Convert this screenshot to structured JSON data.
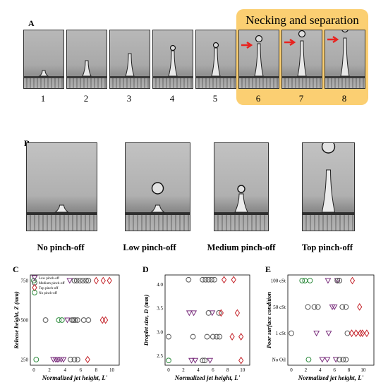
{
  "panel_a": {
    "letter": "A",
    "highlight_title": "Necking and separation",
    "frames": [
      "1",
      "2",
      "3",
      "4",
      "5",
      "6",
      "7",
      "8"
    ]
  },
  "panel_b": {
    "letter": "B",
    "labels": [
      "No pinch-off",
      "Low pinch-off",
      "Medium pinch-off",
      "Top pinch-off"
    ]
  },
  "colors": {
    "highlight": "#fbcf72",
    "arrow": "#e8231f",
    "low": "#7a2f7d",
    "medium": "#555555",
    "top": "#c4232a",
    "none": "#2e8b3e"
  },
  "chart_data": [
    {
      "letter": "C",
      "type": "scatter",
      "xlabel": "Normalized jet height, L'",
      "ylabel": "Release height, Z (mm)",
      "xlim": [
        0,
        10.5
      ],
      "yticks": [
        "250",
        "500",
        "750"
      ],
      "xticks": [
        "0",
        "2",
        "4",
        "6",
        "8",
        "10"
      ],
      "ycats": [
        250,
        500,
        750
      ],
      "legend": [
        "Low pinch-off",
        "Medium pinch-off",
        "Top pinch-off",
        "No pinch-off"
      ],
      "series": [
        {
          "name": "Low pinch-off",
          "marker": "tri-down",
          "color": "#7a2f7d",
          "points": [
            [
              2.5,
              250
            ],
            [
              2.8,
              250
            ],
            [
              3.0,
              250
            ],
            [
              3.2,
              250
            ],
            [
              3.5,
              250
            ],
            [
              3.8,
              250
            ],
            [
              4.6,
              750
            ],
            [
              4.3,
              500
            ]
          ]
        },
        {
          "name": "Medium pinch-off",
          "marker": "circle",
          "color": "#555555",
          "points": [
            [
              4.7,
              250
            ],
            [
              5.2,
              250
            ],
            [
              5.6,
              250
            ],
            [
              4.9,
              500
            ],
            [
              5.1,
              500
            ],
            [
              5.3,
              500
            ],
            [
              5.6,
              500
            ],
            [
              6.4,
              500
            ],
            [
              7.0,
              500
            ],
            [
              1.5,
              500
            ],
            [
              5.2,
              750
            ],
            [
              5.5,
              750
            ],
            [
              5.9,
              750
            ],
            [
              6.3,
              750
            ],
            [
              6.7,
              750
            ],
            [
              7.0,
              750
            ]
          ]
        },
        {
          "name": "Top pinch-off",
          "marker": "diamond",
          "color": "#c4232a",
          "points": [
            [
              6.9,
              250
            ],
            [
              8.8,
              500
            ],
            [
              9.2,
              500
            ],
            [
              8.0,
              750
            ],
            [
              8.9,
              750
            ],
            [
              9.7,
              750
            ]
          ]
        },
        {
          "name": "No pinch-off",
          "marker": "circle",
          "color": "#2e8b3e",
          "points": [
            [
              0.3,
              250
            ],
            [
              0.0,
              750
            ],
            [
              3.2,
              500
            ],
            [
              3.6,
              500
            ]
          ]
        }
      ]
    },
    {
      "letter": "D",
      "type": "scatter",
      "xlabel": "Normalized jet height, L'",
      "ylabel": "Droplet size, D (mm)",
      "xlim": [
        0,
        10.5
      ],
      "ylim": [
        2.3,
        4.2
      ],
      "yticks": [
        "2.5",
        "3.0",
        "3.5",
        "4.0"
      ],
      "xticks": [
        "0",
        "2",
        "4",
        "6",
        "8",
        "10"
      ],
      "series": [
        {
          "name": "Low pinch-off",
          "marker": "tri-down",
          "color": "#7a2f7d",
          "points": [
            [
              2.8,
              3.4
            ],
            [
              3.4,
              3.4
            ],
            [
              3.1,
              2.4
            ],
            [
              3.6,
              2.4
            ],
            [
              5.6,
              2.4
            ],
            [
              5.9,
              3.4
            ]
          ]
        },
        {
          "name": "Medium pinch-off",
          "marker": "circle",
          "color": "#555555",
          "points": [
            [
              2.7,
              4.1
            ],
            [
              4.6,
              4.1
            ],
            [
              5.0,
              4.1
            ],
            [
              5.4,
              4.1
            ],
            [
              5.8,
              4.1
            ],
            [
              6.2,
              4.1
            ],
            [
              5.4,
              3.4
            ],
            [
              6.8,
              3.4
            ],
            [
              3.3,
              2.9
            ],
            [
              5.2,
              2.9
            ],
            [
              6.0,
              2.9
            ],
            [
              6.5,
              2.9
            ],
            [
              6.9,
              2.9
            ],
            [
              0.0,
              2.9
            ],
            [
              4.6,
              2.4
            ],
            [
              4.9,
              2.4
            ]
          ]
        },
        {
          "name": "Top pinch-off",
          "marker": "diamond",
          "color": "#c4232a",
          "points": [
            [
              7.5,
              4.1
            ],
            [
              8.8,
              4.1
            ],
            [
              7.1,
              3.4
            ],
            [
              9.3,
              3.4
            ],
            [
              8.6,
              2.9
            ],
            [
              9.8,
              2.9
            ],
            [
              9.8,
              2.4
            ]
          ]
        },
        {
          "name": "No pinch-off",
          "marker": "circle",
          "color": "#2e8b3e",
          "points": [
            [
              0.0,
              2.4
            ]
          ]
        }
      ]
    },
    {
      "letter": "E",
      "type": "scatter",
      "xlabel": "Normalized jet height, L'",
      "ylabel": "Poor surface condition",
      "xlim": [
        0,
        11
      ],
      "ycats": [
        "No Oil",
        "1 cSt",
        "50 cSt",
        "100 cSt"
      ],
      "xticks": [
        "0",
        "2",
        "4",
        "6",
        "8",
        "10"
      ],
      "series": [
        {
          "name": "Low pinch-off",
          "marker": "tri-down",
          "color": "#7a2f7d",
          "points": [
            [
              3.5,
              1
            ],
            [
              5.2,
              1
            ],
            [
              4.3,
              0
            ],
            [
              5.0,
              0
            ],
            [
              6.2,
              0
            ],
            [
              5.7,
              2
            ],
            [
              6.0,
              2
            ],
            [
              5.1,
              3
            ],
            [
              6.4,
              3
            ]
          ]
        },
        {
          "name": "Medium pinch-off",
          "marker": "circle",
          "color": "#555555",
          "points": [
            [
              2.3,
              2
            ],
            [
              3.2,
              2
            ],
            [
              3.7,
              2
            ],
            [
              7.1,
              2
            ],
            [
              7.6,
              2
            ],
            [
              6.4,
              3
            ],
            [
              6.7,
              3
            ],
            [
              0.0,
              1
            ],
            [
              7.8,
              1
            ],
            [
              6.7,
              0
            ],
            [
              7.2,
              0
            ],
            [
              7.6,
              0
            ]
          ]
        },
        {
          "name": "Top pinch-off",
          "marker": "diamond",
          "color": "#c4232a",
          "points": [
            [
              9.5,
              2
            ],
            [
              8.4,
              1
            ],
            [
              9.0,
              1
            ],
            [
              9.6,
              1
            ],
            [
              9.9,
              1
            ],
            [
              10.5,
              1
            ],
            [
              8.5,
              3
            ]
          ]
        },
        {
          "name": "No pinch-off",
          "marker": "circle",
          "color": "#2e8b3e",
          "points": [
            [
              1.5,
              3
            ],
            [
              1.9,
              3
            ],
            [
              2.6,
              3
            ],
            [
              2.4,
              0
            ]
          ]
        }
      ]
    }
  ]
}
